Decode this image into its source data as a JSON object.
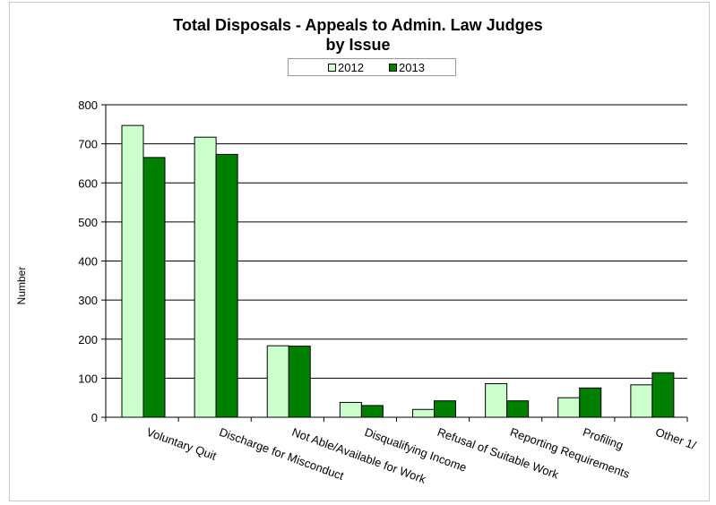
{
  "chart_data": {
    "type": "bar",
    "title_line1": "Total Disposals -  Appeals to Admin. Law Judges",
    "title_line2": "by Issue",
    "ylabel": "Number",
    "xlabel": "",
    "ylim": [
      0,
      800
    ],
    "yticks": [
      "0",
      "100",
      "200",
      "300",
      "400",
      "500",
      "600",
      "700",
      "800"
    ],
    "grid": true,
    "legend_position": "top-center",
    "categories": [
      "Voluntary Quit",
      "Discharge for Misconduct",
      "Not Able/Available for Work",
      "Disqualifying Income",
      "Refusal of Suitable Work",
      "Reporting Requirements",
      "Profiling",
      "Other 1/"
    ],
    "series": [
      {
        "name": "2012",
        "color": "#ccffcc",
        "values": [
          747,
          717,
          183,
          38,
          20,
          86,
          50,
          83
        ]
      },
      {
        "name": "2013",
        "color": "#008000",
        "values": [
          665,
          673,
          182,
          30,
          42,
          42,
          75,
          114
        ]
      }
    ]
  }
}
